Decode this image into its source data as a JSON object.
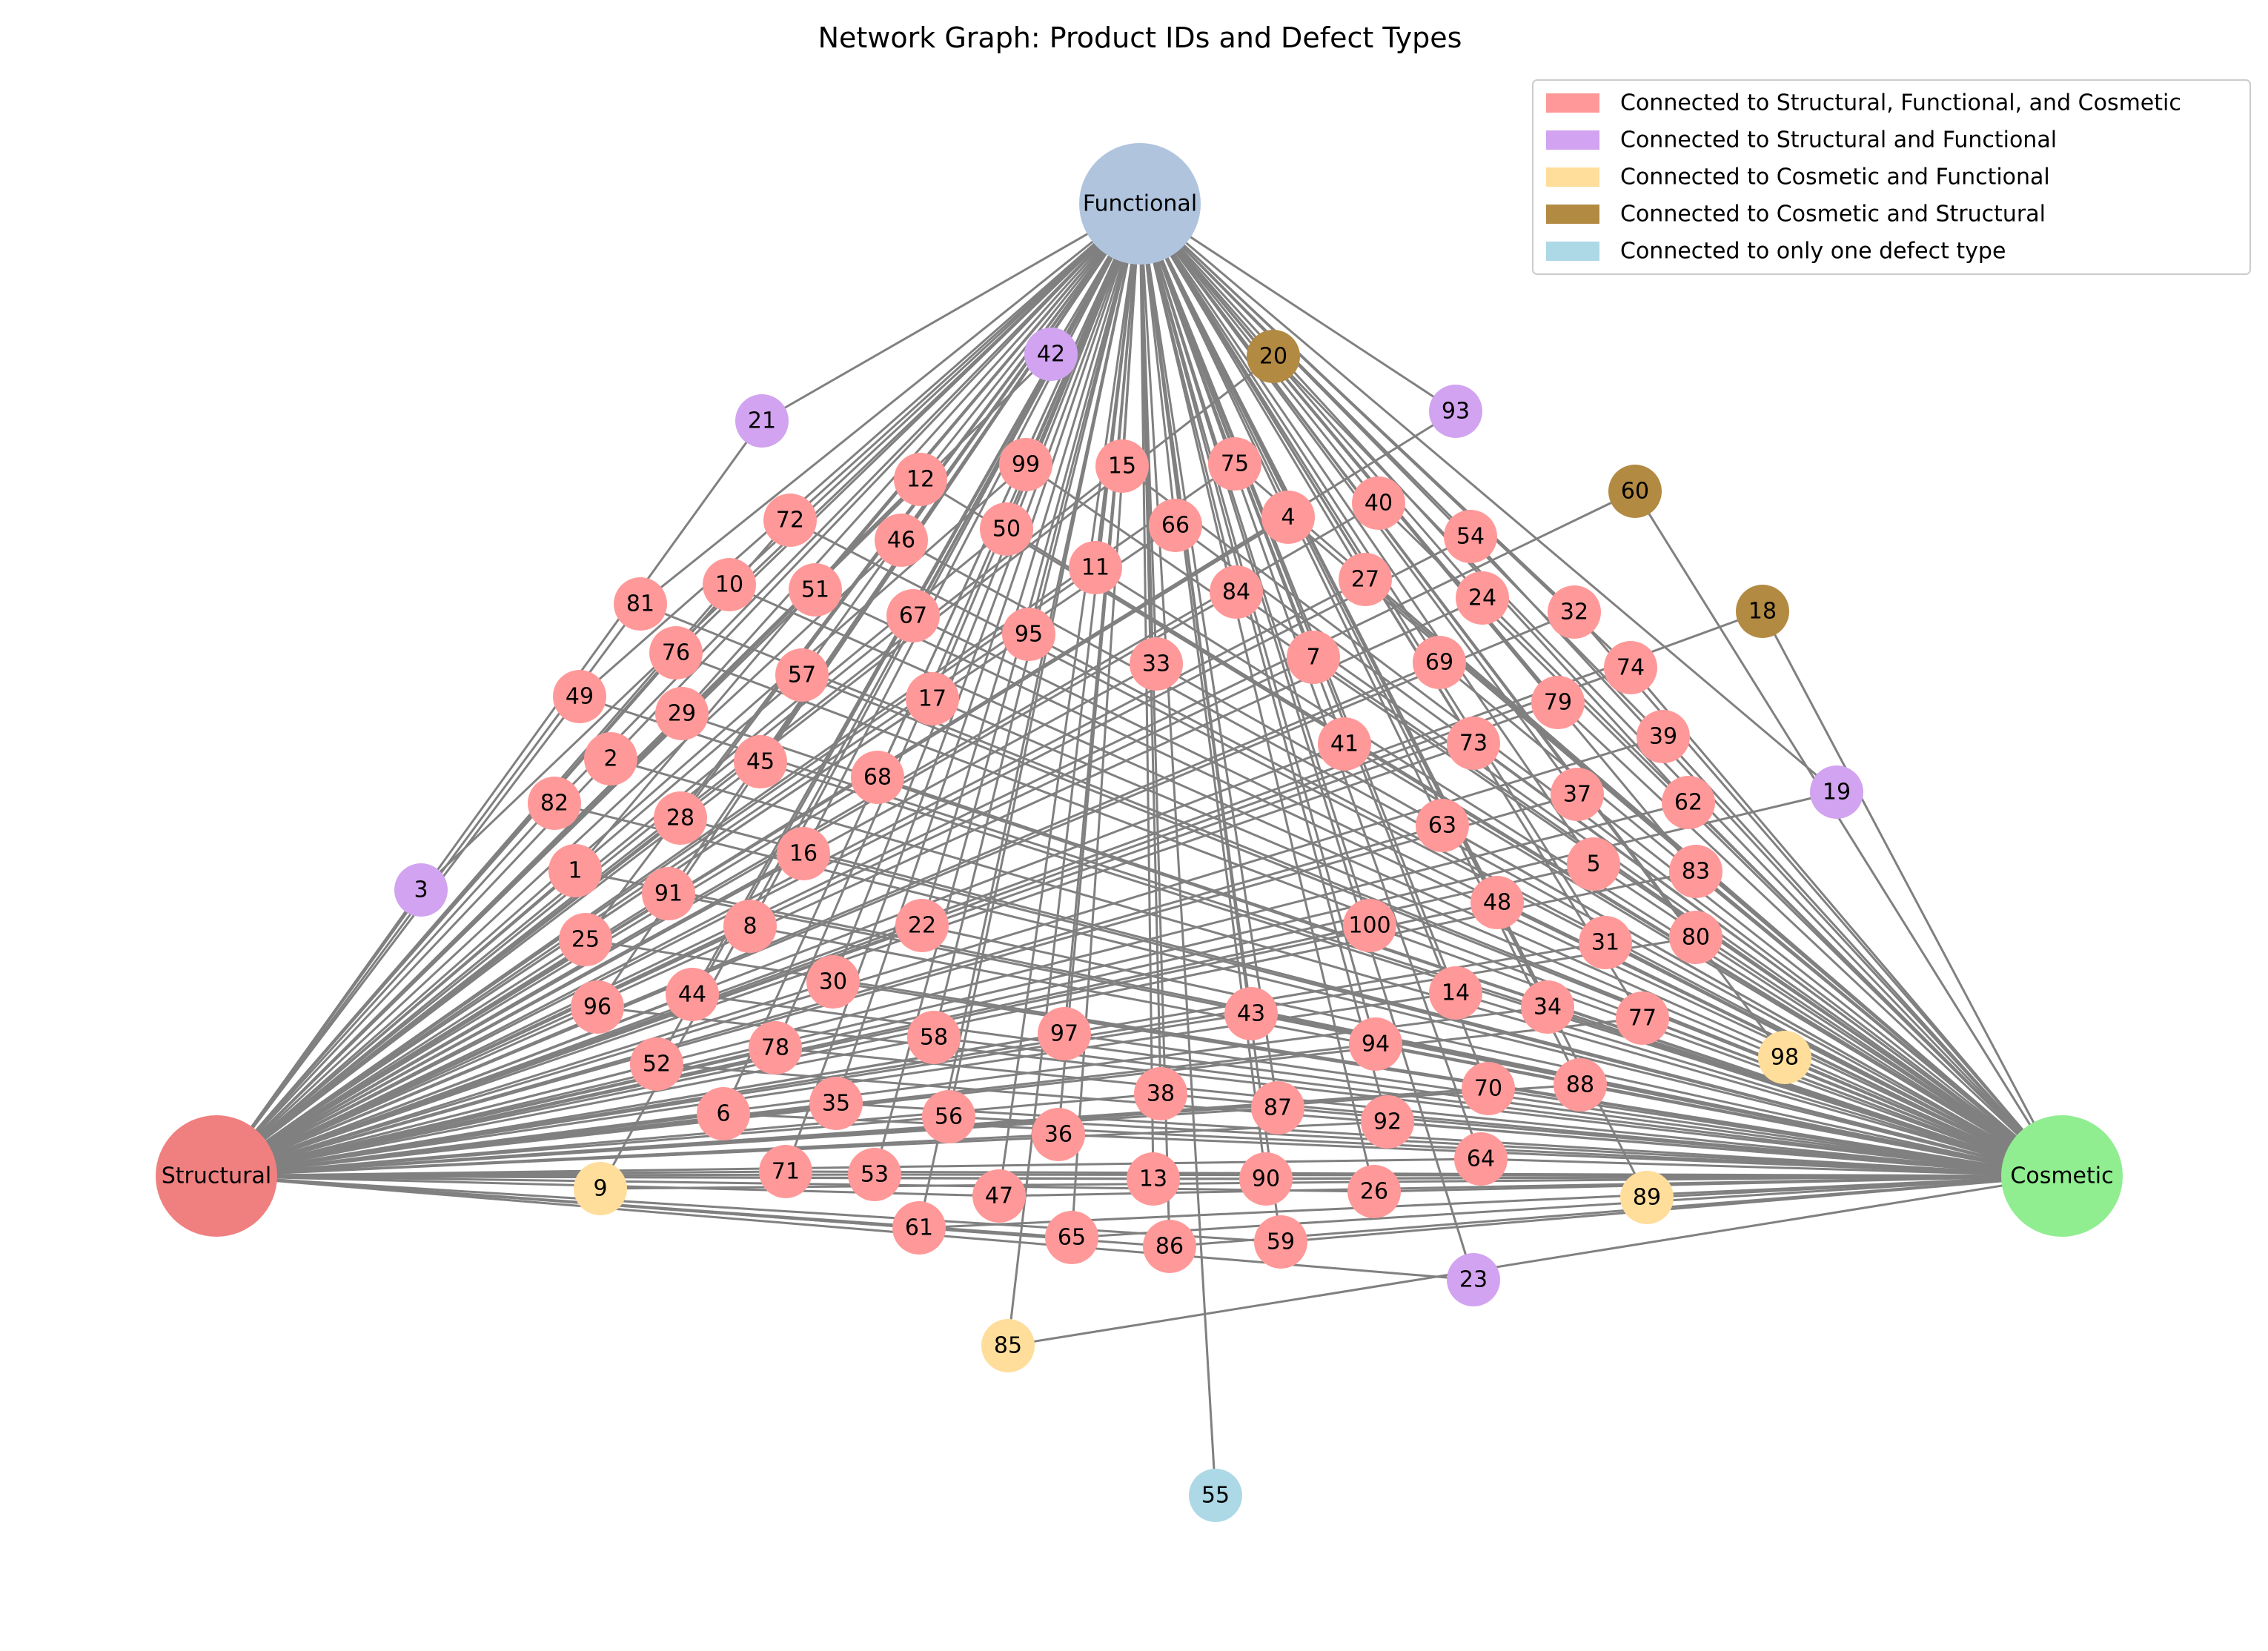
{
  "title": "Network Graph: Product IDs and Defect Types",
  "colors": {
    "structural": "#f08080",
    "functional": "#b0c4de",
    "cosmetic": "#90ee90",
    "all_three": "#ff9999",
    "structural_functional": "#d1a3f0",
    "cosmetic_functional": "#ffdd9b",
    "cosmetic_structural": "#b38a42",
    "single": "#add8e6",
    "edge": "#808080"
  },
  "hubs": [
    {
      "id": "Structural",
      "label": "Structural",
      "color": "#f08080"
    },
    {
      "id": "Functional",
      "label": "Functional",
      "color": "#b0c4de"
    },
    {
      "id": "Cosmetic",
      "label": "Cosmetic",
      "color": "#90ee90"
    }
  ],
  "legend": [
    {
      "label": "Connected to Structural, Functional, and Cosmetic",
      "color": "#ff9999"
    },
    {
      "label": "Connected to Structural and Functional",
      "color": "#d1a3f0"
    },
    {
      "label": "Connected to Cosmetic and Functional",
      "color": "#ffdd9b"
    },
    {
      "label": "Connected to Cosmetic and Structural",
      "color": "#b38a42"
    },
    {
      "label": "Connected to only one defect type",
      "color": "#add8e6"
    }
  ],
  "groups": {
    "all_three": [
      "1",
      "2",
      "4",
      "5",
      "6",
      "7",
      "8",
      "10",
      "11",
      "12",
      "13",
      "14",
      "15",
      "16",
      "17",
      "22",
      "24",
      "25",
      "26",
      "27",
      "28",
      "29",
      "30",
      "31",
      "32",
      "33",
      "34",
      "35",
      "36",
      "37",
      "38",
      "39",
      "40",
      "41",
      "43",
      "44",
      "45",
      "46",
      "47",
      "48",
      "49",
      "50",
      "51",
      "52",
      "53",
      "54",
      "56",
      "57",
      "58",
      "59",
      "61",
      "62",
      "63",
      "64",
      "65",
      "66",
      "67",
      "68",
      "69",
      "70",
      "71",
      "72",
      "73",
      "74",
      "75",
      "76",
      "77",
      "78",
      "79",
      "80",
      "81",
      "82",
      "83",
      "84",
      "86",
      "87",
      "88",
      "90",
      "91",
      "92",
      "94",
      "95",
      "96",
      "97",
      "99",
      "100"
    ],
    "structural_functional": [
      "3",
      "19",
      "21",
      "23",
      "42",
      "93"
    ],
    "cosmetic_functional": [
      "9",
      "85",
      "89",
      "98"
    ],
    "cosmetic_structural": [
      "18",
      "20",
      "60"
    ],
    "single_functional": [
      "55"
    ]
  }
}
